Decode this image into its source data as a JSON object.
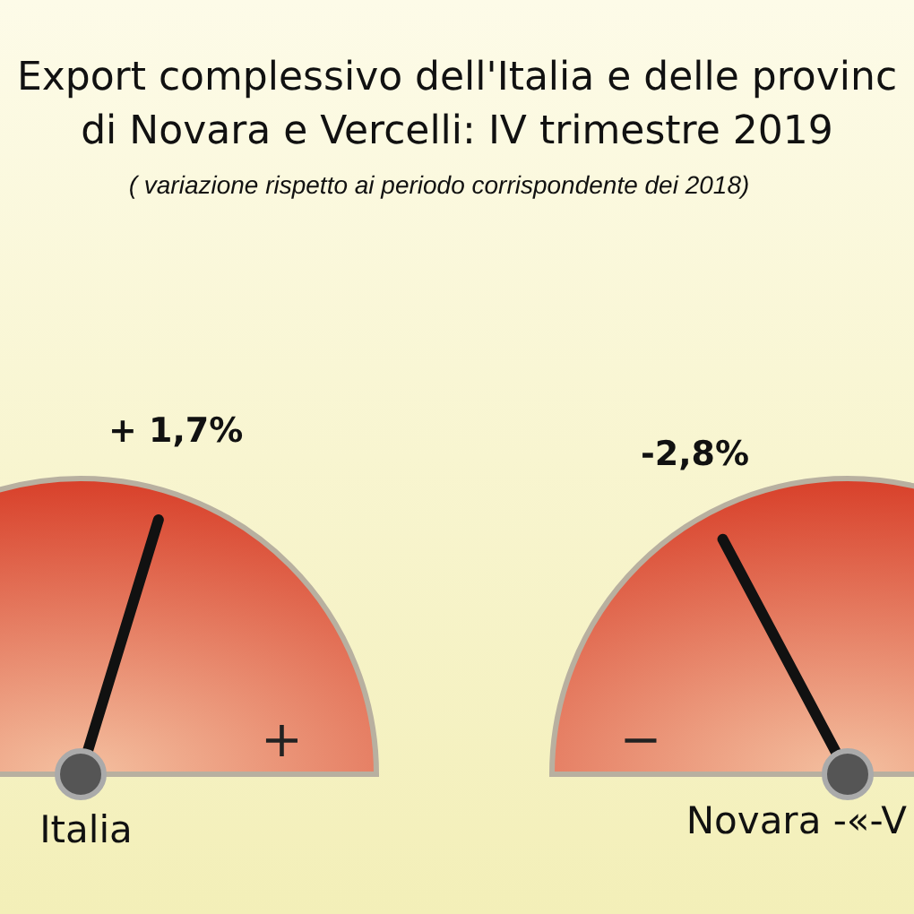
{
  "chart_data": {
    "type": "other",
    "title": "Export complessivo dell'Italia e delle provinc",
    "subtitle": "di Novara e Vercelli: IV trimestre 2019",
    "annotations": [
      "( variazione rispetto ai periodo corrispondente dei 2018)",
      "+",
      "−"
    ],
    "categories": [
      "Italia",
      "Novara -«-V"
    ],
    "values": [
      1.7,
      -2.8
    ],
    "value_labels": [
      "+ 1,7%",
      "-2,8%"
    ],
    "colors": [
      "#d8402a",
      "#d8402a"
    ]
  }
}
